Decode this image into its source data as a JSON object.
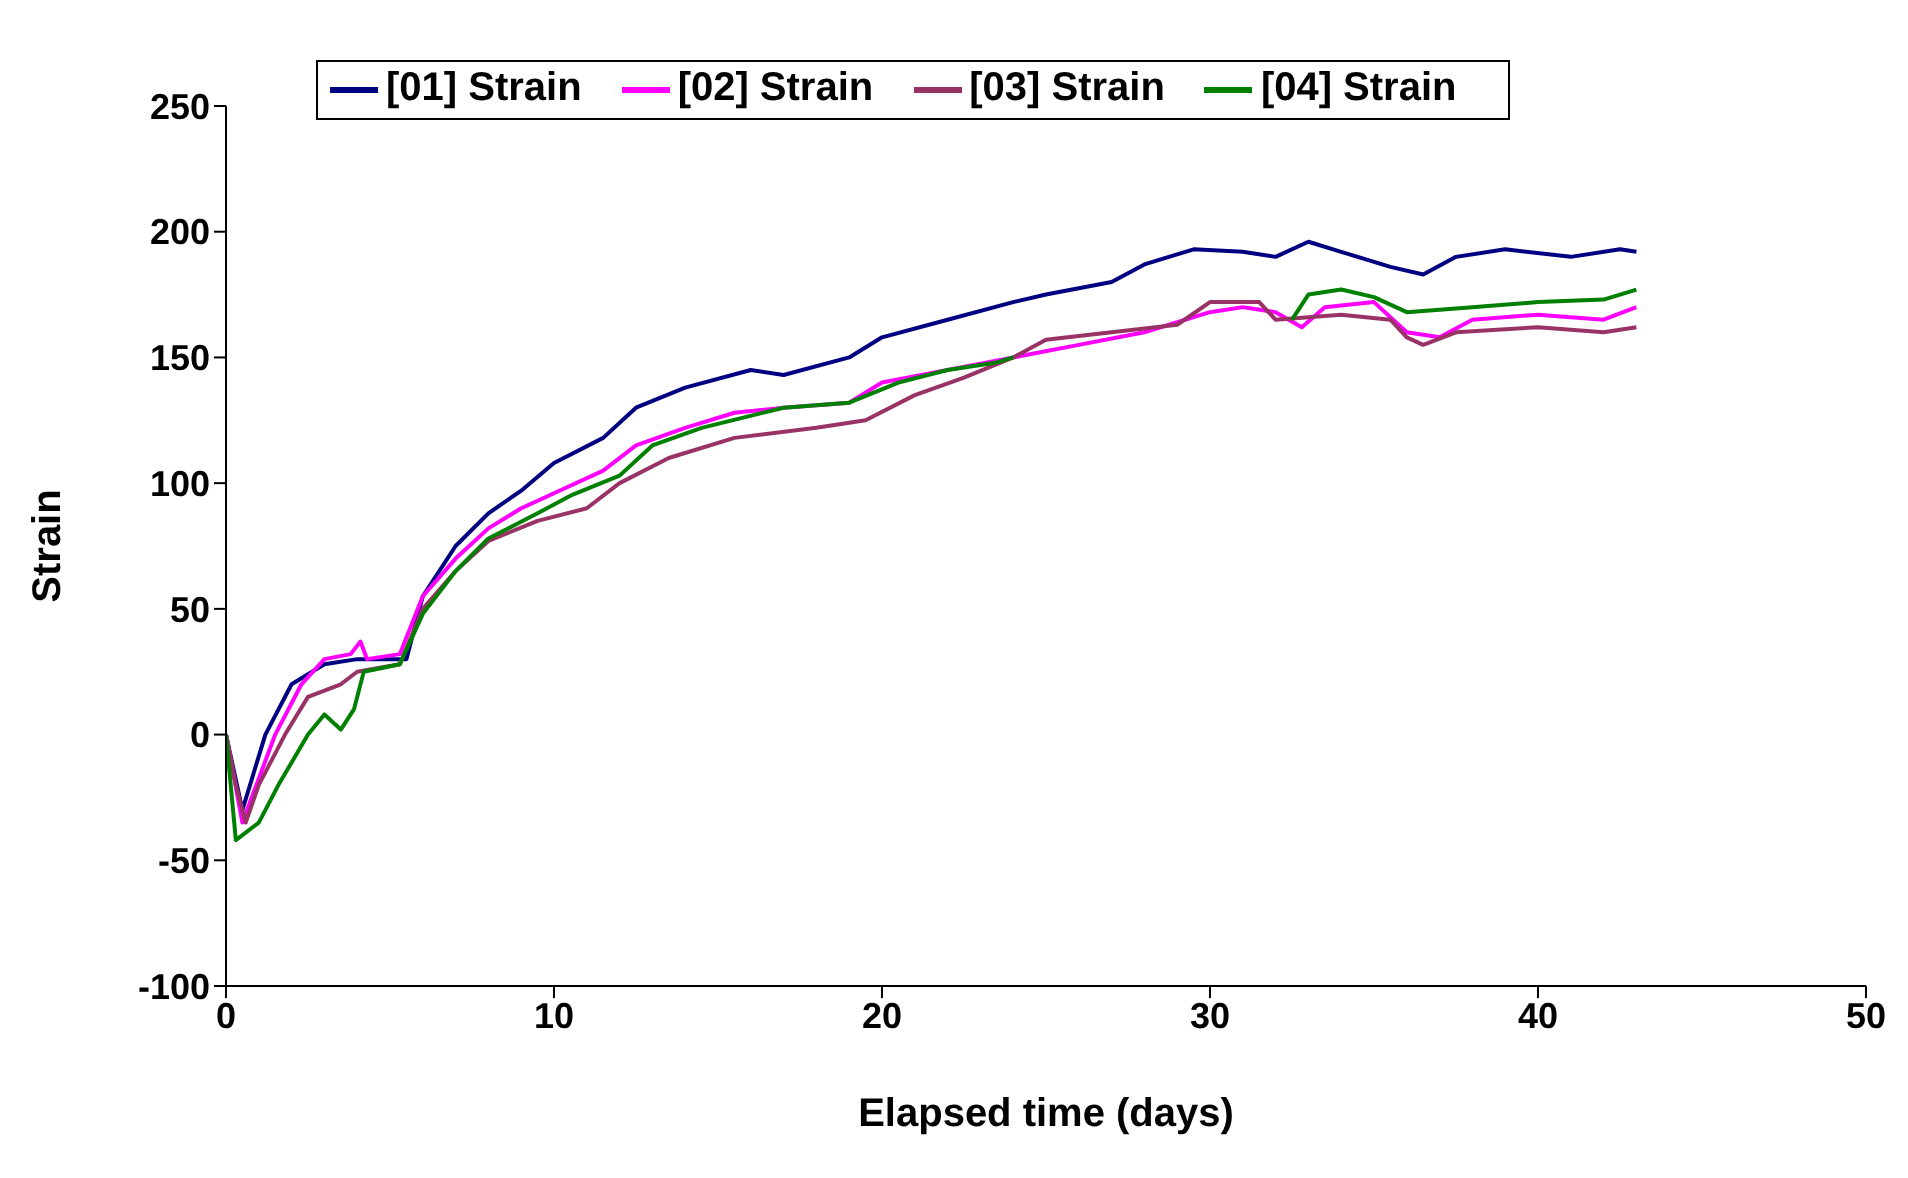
{
  "chart_data": {
    "type": "line",
    "xlabel": "Elapsed time (days)",
    "ylabel": "Strain",
    "xlim": [
      0,
      50
    ],
    "xticks": [
      0,
      10,
      20,
      30,
      40,
      50
    ],
    "ylim": [
      -100,
      250
    ],
    "yticks": [
      -100,
      -50,
      0,
      50,
      100,
      150,
      200,
      250
    ],
    "grid": false,
    "legend": "top",
    "marker": "none",
    "line_style": "solid",
    "series": [
      {
        "name": "[01]  Strain",
        "color": "#000080",
        "x": [
          0,
          0.5,
          1.2,
          2,
          3,
          4,
          5.5,
          6,
          7,
          8,
          9,
          10,
          11.5,
          12.5,
          14,
          16,
          17,
          19,
          20,
          22,
          24,
          25,
          27,
          28,
          29.5,
          31,
          32,
          33,
          34,
          35.5,
          36.5,
          37.5,
          39,
          41,
          42.5,
          43
        ],
        "values": [
          0,
          -30,
          0,
          20,
          28,
          30,
          30,
          55,
          75,
          88,
          97,
          108,
          118,
          130,
          138,
          145,
          143,
          150,
          158,
          165,
          172,
          175,
          180,
          187,
          193,
          192,
          190,
          196,
          192,
          186,
          183,
          190,
          193,
          190,
          193,
          192
        ]
      },
      {
        "name": "[02]  Strain",
        "color": "#ff00ff",
        "x": [
          0,
          0.5,
          1.5,
          2.3,
          3,
          3.8,
          4.1,
          4.3,
          5.3,
          6,
          7,
          8,
          9,
          10,
          11.5,
          12.5,
          14,
          15.5,
          17,
          19,
          20,
          22,
          24,
          26,
          28,
          30,
          31,
          32,
          32.8,
          33.5,
          35,
          36,
          37,
          38,
          40,
          42,
          43
        ],
        "values": [
          0,
          -35,
          0,
          20,
          30,
          32,
          37,
          30,
          32,
          55,
          70,
          82,
          90,
          96,
          105,
          115,
          122,
          128,
          130,
          132,
          140,
          145,
          150,
          155,
          160,
          168,
          170,
          168,
          162,
          170,
          172,
          160,
          158,
          165,
          167,
          165,
          170
        ]
      },
      {
        "name": "[03]  Strain",
        "color": "#993366",
        "x": [
          0,
          0.3,
          0.6,
          1,
          1.8,
          2.5,
          3.5,
          4,
          5.3,
          6,
          7,
          8,
          9.5,
          11,
          12,
          13.5,
          15.5,
          18,
          19.5,
          21,
          22.5,
          24,
          25,
          27,
          29,
          30,
          31.5,
          32,
          34,
          35.5,
          36,
          36.5,
          37.5,
          40,
          42,
          43
        ],
        "values": [
          0,
          -20,
          -35,
          -20,
          0,
          15,
          20,
          25,
          28,
          50,
          65,
          77,
          85,
          90,
          100,
          110,
          118,
          122,
          125,
          135,
          142,
          150,
          157,
          160,
          163,
          172,
          172,
          165,
          167,
          165,
          158,
          155,
          160,
          162,
          160,
          162
        ]
      },
      {
        "name": "[04]  Strain",
        "color": "#008000",
        "x": [
          0,
          0.3,
          1,
          1.6,
          2.5,
          3,
          3.5,
          3.9,
          4.2,
          5.3,
          6,
          7,
          8,
          9.5,
          10.5,
          12,
          13,
          14.5,
          17,
          19,
          20.5,
          22,
          23.5,
          24,
          28,
          32.5,
          33,
          34,
          35,
          36,
          38,
          40,
          42,
          43
        ],
        "values": [
          0,
          -42,
          -35,
          -20,
          0,
          8,
          2,
          10,
          25,
          28,
          48,
          65,
          78,
          88,
          95,
          103,
          115,
          122,
          130,
          132,
          140,
          145,
          148,
          150,
          null,
          165,
          175,
          177,
          174,
          168,
          170,
          172,
          173,
          177
        ]
      }
    ]
  }
}
